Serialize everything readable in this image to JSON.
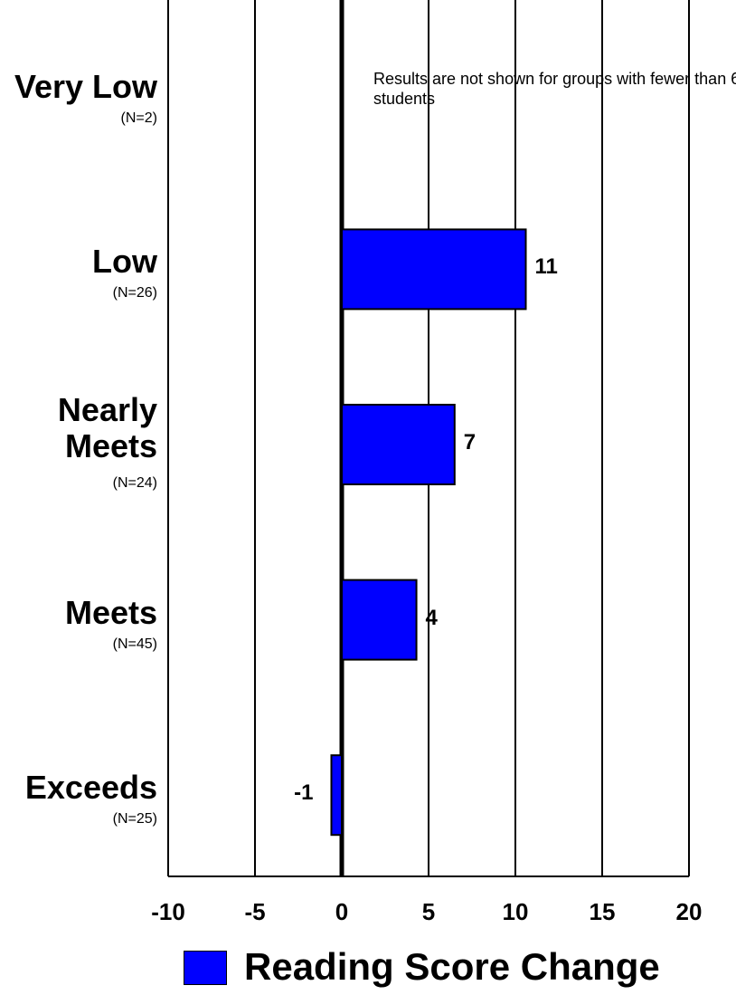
{
  "chart_data": {
    "type": "bar",
    "orientation": "horizontal",
    "categories": [
      {
        "name": "Very Low",
        "n": "(N=2)"
      },
      {
        "name": "Low",
        "n": "(N=26)"
      },
      {
        "name": "Nearly\nMeets",
        "n": "(N=24)"
      },
      {
        "name": "Meets",
        "n": "(N=45)"
      },
      {
        "name": "Exceeds",
        "n": "(N=25)"
      }
    ],
    "series": [
      {
        "name": "Reading Score Change",
        "color": "#0000ff",
        "values": [
          null,
          10.6,
          6.5,
          4.3,
          -0.6
        ],
        "labels": [
          "",
          "11",
          "7",
          "4",
          "-1"
        ]
      }
    ],
    "xlim": [
      -10,
      20
    ],
    "xticks": [
      "-10",
      "-5",
      "0",
      "5",
      "10",
      "15",
      "20"
    ],
    "xtick_values": [
      -10,
      -5,
      0,
      5,
      10,
      15,
      20
    ],
    "grid": "vertical",
    "note": "Results are not shown for groups with fewer than 6 students",
    "legend": {
      "label": "Reading Score Change",
      "placement": "bottom"
    }
  }
}
